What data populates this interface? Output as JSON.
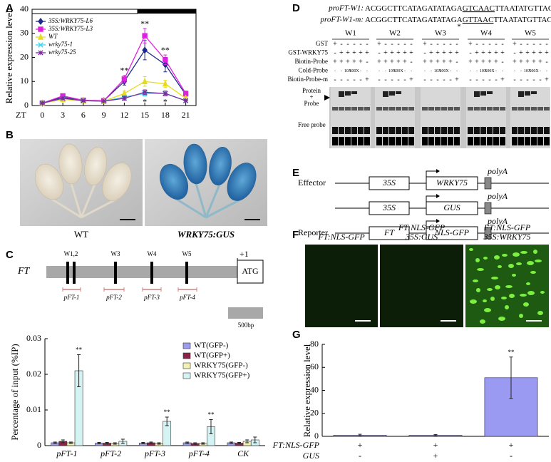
{
  "panels": [
    "A",
    "B",
    "C",
    "D",
    "E",
    "F",
    "G"
  ],
  "chart_data": [
    {
      "type": "line",
      "xlabel": "ZT",
      "ylabel": "Relative expression level",
      "x": [
        0,
        3,
        6,
        9,
        12,
        15,
        18,
        21
      ],
      "xlim": [
        -1.5,
        22.5
      ],
      "xticks": [
        0,
        3,
        6,
        9,
        12,
        15,
        18,
        21
      ],
      "ylim": [
        0,
        40
      ],
      "yticks": [
        0,
        10,
        20,
        30,
        40
      ],
      "series": [
        {
          "name": "35S:WRKY75-L6",
          "color": "#1f2a8c",
          "marker": "diamond",
          "values": [
            1,
            3.5,
            2,
            2,
            10,
            23,
            17,
            4.5
          ],
          "errors": [
            0.2,
            0.8,
            0.4,
            0.3,
            1.5,
            4,
            3,
            1
          ]
        },
        {
          "name": "35S:WRKY75-L3",
          "color": "#e020e0",
          "marker": "square",
          "values": [
            1,
            4,
            2.2,
            2,
            11,
            29,
            19,
            5
          ],
          "errors": [
            0.2,
            0.8,
            0.4,
            0.3,
            1.5,
            3,
            2,
            1
          ]
        },
        {
          "name": "WT",
          "color": "#e6dc1e",
          "marker": "triangle",
          "values": [
            1,
            2.5,
            2,
            1.8,
            5,
            10,
            9,
            3
          ],
          "errors": [
            0.2,
            0.5,
            0.3,
            0.3,
            1,
            2,
            1.5,
            0.5
          ]
        },
        {
          "name": "wrky75-1",
          "color": "#3fd8ee",
          "marker": "cross",
          "values": [
            1,
            3,
            2,
            1.8,
            3.5,
            5,
            5,
            2
          ],
          "errors": [
            0.1,
            0.5,
            0.3,
            0.2,
            0.8,
            1,
            1,
            0.5
          ]
        },
        {
          "name": "wrky75-25",
          "color": "#7a2c9c",
          "marker": "star",
          "values": [
            1,
            3,
            2,
            1.8,
            3,
            5.5,
            5,
            2
          ],
          "errors": [
            0.1,
            0.5,
            0.3,
            0.2,
            0.8,
            1,
            1,
            0.5
          ]
        }
      ],
      "annotations": [
        {
          "text": "**",
          "index": 4
        },
        {
          "text": "**",
          "index": 5
        },
        {
          "text": "**",
          "index": 6
        }
      ],
      "annotations_below": [
        {
          "text": "*",
          "index": 5
        },
        {
          "text": "*",
          "index": 6
        }
      ]
    },
    {
      "type": "bar",
      "ylabel": "Percentage of input (%IP)",
      "categories": [
        "pFT-1",
        "pFT-2",
        "pFT-3",
        "pFT-4",
        "CK"
      ],
      "ylim": [
        0,
        0.03
      ],
      "yticks": [
        0,
        0.01,
        0.02,
        0.03
      ],
      "series": [
        {
          "name": "WT(GFP-)",
          "color": "#9c9cf0",
          "values": [
            0.0008,
            0.0007,
            0.0007,
            0.0008,
            0.0008
          ],
          "errors": [
            0.0002,
            0.0002,
            0.0002,
            0.0002,
            0.0002
          ]
        },
        {
          "name": "WT(GFP+)",
          "color": "#8c2446",
          "values": [
            0.0012,
            0.0007,
            0.0008,
            0.0006,
            0.0007
          ],
          "errors": [
            0.0004,
            0.0002,
            0.0002,
            0.0002,
            0.0002
          ]
        },
        {
          "name": "WRKY75(GFP-)",
          "color": "#f2f2b4",
          "values": [
            0.0008,
            0.0006,
            0.0006,
            0.0006,
            0.0012
          ],
          "errors": [
            0.0002,
            0.0002,
            0.0002,
            0.0002,
            0.0004
          ]
        },
        {
          "name": "WRKY75(GFP+)",
          "color": "#d4f4f4",
          "values": [
            0.021,
            0.0012,
            0.0068,
            0.0053,
            0.0016
          ],
          "errors": [
            0.0045,
            0.0006,
            0.0012,
            0.002,
            0.0008
          ]
        }
      ],
      "annotations": [
        {
          "text": "**",
          "index": 0
        },
        {
          "text": "**",
          "index": 2
        },
        {
          "text": "**",
          "index": 3
        }
      ]
    },
    {
      "type": "bar",
      "ylabel": "Relative expression level",
      "ylim": [
        0,
        80
      ],
      "yticks": [
        0,
        20,
        40,
        60,
        80
      ],
      "series": [
        {
          "color": "#9a9af2",
          "values": [
            1,
            1,
            51
          ],
          "errors": [
            0.8,
            0.6,
            18
          ]
        }
      ],
      "annotations": [
        {
          "text": "**",
          "index": 2
        }
      ],
      "conditions": [
        {
          "name": "FT:NLS-GFP",
          "values": [
            "+",
            "+",
            "+"
          ]
        },
        {
          "name": "GUS",
          "values": [
            "-",
            "+",
            "-"
          ]
        }
      ]
    }
  ],
  "panel_b": {
    "captions": [
      "WT",
      "WRKY75:GUS"
    ]
  },
  "panel_c_map": {
    "gene": "FT",
    "sites": [
      "W1,2",
      "W3",
      "W4",
      "W5"
    ],
    "tss": "+1",
    "start_codon": "ATG",
    "primers": [
      "pFT-1",
      "pFT-2",
      "pFT-3",
      "pFT-4"
    ],
    "scale": "500bp"
  },
  "panel_d": {
    "sequences": [
      {
        "label": "proFT-W1:",
        "seq": [
          "ACGGCTTCATAGATATAGA",
          "GTCAAC",
          "TTAATATGTTACAATG"
        ]
      },
      {
        "label": "proFT-W1-m:",
        "seq": [
          "ACGGCTTCATAGATATAGA",
          "GTTAAC",
          "TTAATATGTTACAATG"
        ]
      }
    ],
    "mutation_mark": "*",
    "groups": [
      "W1",
      "W2",
      "W3",
      "W4",
      "W5"
    ],
    "rows": [
      {
        "name": "GST",
        "lanes": [
          "+",
          "-",
          "-",
          "-",
          "-",
          "-"
        ]
      },
      {
        "name": "GST-WRKY75",
        "lanes": [
          "-",
          "+",
          "+",
          "+",
          "+",
          "+"
        ]
      },
      {
        "name": "Biotin-Probe",
        "lanes": [
          "+",
          "+",
          "+",
          "+",
          "+",
          "-"
        ]
      },
      {
        "name": "Cold-Probe",
        "lanes": [
          "-",
          "-",
          "10X",
          "100X",
          "-",
          "-"
        ]
      },
      {
        "name": "Biotin-Probe-m",
        "lanes": [
          "-",
          "-",
          "-",
          "-",
          "-",
          "+"
        ]
      }
    ],
    "shifted_band": [
      "Protein",
      "+",
      "Probe"
    ],
    "free_band": "Free probe"
  },
  "panel_e": {
    "rows": [
      {
        "label": "Effector",
        "promoter": "35S",
        "gene": "WRKY75",
        "terminator": "polyA"
      },
      {
        "promoter": "35S",
        "gene": "GUS",
        "terminator": "polyA"
      },
      {
        "label": "Reporter",
        "promoter": "FT",
        "gene": "NLS-GFP",
        "terminator": "polyA"
      }
    ]
  },
  "panel_f": {
    "titles": [
      [
        "FT:NLS-GFP"
      ],
      [
        "FT:NLS-GFP",
        "35S:GUS"
      ],
      [
        "FT:NLS-GFP",
        "35S:WRKY75"
      ]
    ]
  }
}
